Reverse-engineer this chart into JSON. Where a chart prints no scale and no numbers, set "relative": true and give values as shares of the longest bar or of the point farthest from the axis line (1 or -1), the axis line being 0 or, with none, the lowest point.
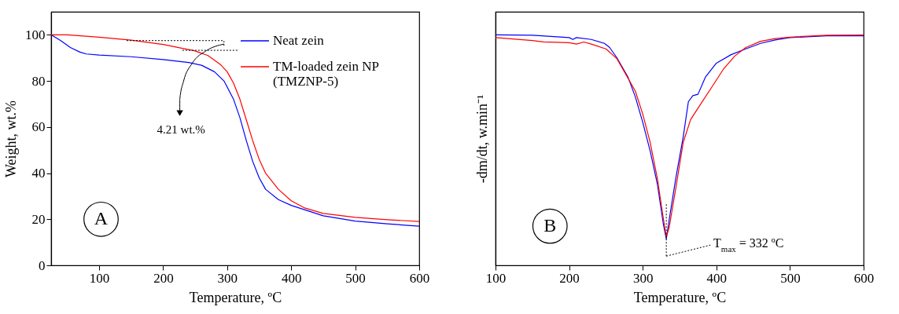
{
  "chart_data": [
    {
      "type": "line",
      "xlabel": "Temperature, ºC",
      "ylabel": "Weight, wt.%",
      "xlim": [
        25,
        600
      ],
      "ylim": [
        0,
        110
      ],
      "xticks": [
        100,
        200,
        300,
        400,
        500,
        600
      ],
      "yticks": [
        0,
        20,
        40,
        60,
        80,
        100
      ],
      "legend": "top right",
      "annotations": [
        "4.21 wt.%",
        "A"
      ],
      "ref_lines": [
        {
          "axis": "y",
          "value": 97.5,
          "line_style": "dotted",
          "color": "#000000"
        },
        {
          "axis": "y",
          "value": 93.29,
          "line_style": "dotted",
          "color": "#000000"
        }
      ],
      "series": [
        {
          "name": "Neat zein",
          "color": "#0000ff",
          "x": [
            25,
            40,
            55,
            70,
            80,
            100,
            150,
            200,
            240,
            260,
            280,
            295,
            310,
            320,
            330,
            340,
            350,
            360,
            380,
            400,
            450,
            500,
            550,
            600
          ],
          "values": [
            100,
            97.5,
            94.5,
            92.5,
            91.7,
            91.2,
            90.5,
            89.3,
            88,
            86.8,
            84,
            80,
            72,
            64,
            54,
            45,
            38,
            33,
            28.5,
            26,
            21.5,
            19.2,
            18,
            17
          ]
        },
        {
          "name": "TM-loaded zein NP (TMZNP-5)",
          "color": "#ff0000",
          "x": [
            25,
            50,
            100,
            150,
            200,
            250,
            270,
            290,
            300,
            310,
            320,
            330,
            340,
            350,
            360,
            380,
            400,
            420,
            450,
            500,
            550,
            600
          ],
          "values": [
            100,
            100,
            99,
            97.7,
            95.8,
            93,
            91,
            87,
            84,
            79,
            72,
            63,
            54,
            46,
            40,
            33,
            28,
            25,
            22.5,
            20.8,
            19.8,
            19
          ]
        }
      ]
    },
    {
      "type": "line",
      "xlabel": "Temperature, ºC",
      "ylabel": "-dm/dt,  w.min⁻¹",
      "xlim": [
        100,
        600
      ],
      "xticks": [
        100,
        200,
        300,
        400,
        500,
        600
      ],
      "relative": true,
      "legend": "right",
      "annotations": [
        "B"
      ],
      "ref_lines": [
        {
          "axis": "x",
          "value": 332,
          "label": "T$_{max}$ = 332 ºC",
          "line_style": "dotted",
          "color": "#000000"
        }
      ],
      "series": [
        {
          "name": "Neat zein",
          "color": "#0000ff",
          "x": [
            100,
            150,
            200,
            205,
            210,
            230,
            248,
            255,
            265,
            280,
            290,
            300,
            310,
            320,
            328,
            332,
            336,
            345,
            355,
            362,
            368,
            375,
            385,
            400,
            420,
            440,
            460,
            480,
            500,
            550,
            600
          ],
          "values": [
            1.0,
            0.998,
            0.988,
            0.98,
            0.988,
            0.98,
            0.963,
            0.945,
            0.9,
            0.816,
            0.73,
            0.62,
            0.497,
            0.35,
            0.178,
            0.114,
            0.2,
            0.38,
            0.558,
            0.71,
            0.736,
            0.742,
            0.816,
            0.877,
            0.914,
            0.939,
            0.963,
            0.978,
            0.988,
            0.996,
            0.996
          ]
        },
        {
          "name": "TM-loaded zein NP (TMZNP-5)",
          "color": "#ff0000",
          "x": [
            100,
            150,
            165,
            200,
            210,
            220,
            230,
            250,
            265,
            275,
            290,
            300,
            310,
            320,
            328,
            332,
            336,
            345,
            355,
            365,
            380,
            395,
            410,
            425,
            440,
            460,
            480,
            500,
            550,
            600
          ],
          "values": [
            0.988,
            0.975,
            0.969,
            0.966,
            0.96,
            0.969,
            0.96,
            0.939,
            0.896,
            0.84,
            0.755,
            0.656,
            0.534,
            0.374,
            0.202,
            0.123,
            0.166,
            0.337,
            0.534,
            0.632,
            0.706,
            0.779,
            0.853,
            0.908,
            0.945,
            0.972,
            0.984,
            0.99,
            0.998,
            0.999
          ]
        }
      ]
    }
  ]
}
